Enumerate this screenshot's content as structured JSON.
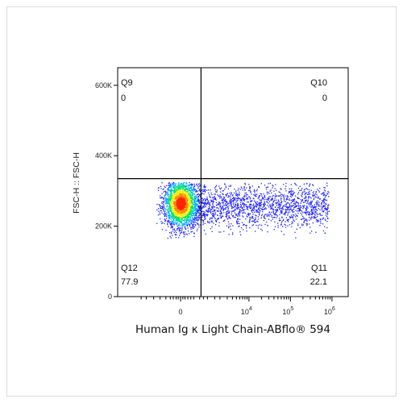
{
  "chart_data": {
    "type": "scatter",
    "subtype": "flow-cytometry-density-dot-plot",
    "xlabel": "Human Ig κ Light Chain-ABflo® 594",
    "ylabel": "FSC-H :: FSC-H",
    "x_scale": "biexponential",
    "x_ticks": [
      {
        "value": 0,
        "label": "0"
      },
      {
        "value": 10000,
        "label": "10",
        "exp": "4"
      },
      {
        "value": 100000,
        "label": "10",
        "exp": "5"
      },
      {
        "value": 1000000,
        "label": "10",
        "exp": "6"
      }
    ],
    "y_ticks": [
      {
        "value": 0,
        "label": "0"
      },
      {
        "value": 200000,
        "label": "200K"
      },
      {
        "value": 400000,
        "label": "400K"
      },
      {
        "value": 600000,
        "label": "600K"
      }
    ],
    "ylim": [
      0,
      650000
    ],
    "gate": {
      "x": 700,
      "y": 335000
    },
    "quadrants": [
      {
        "name": "Q9",
        "value": "0",
        "position": "top-left"
      },
      {
        "name": "Q10",
        "value": "0",
        "position": "top-right"
      },
      {
        "name": "Q12",
        "value": "77.9",
        "position": "bottom-left"
      },
      {
        "name": "Q11",
        "value": "22.1",
        "position": "bottom-right"
      }
    ],
    "density_colors": [
      "#1e22ff",
      "#00b0ff",
      "#00e36a",
      "#f7f000",
      "#ff8a00",
      "#ff2200"
    ],
    "grid": false,
    "legend": "none"
  }
}
